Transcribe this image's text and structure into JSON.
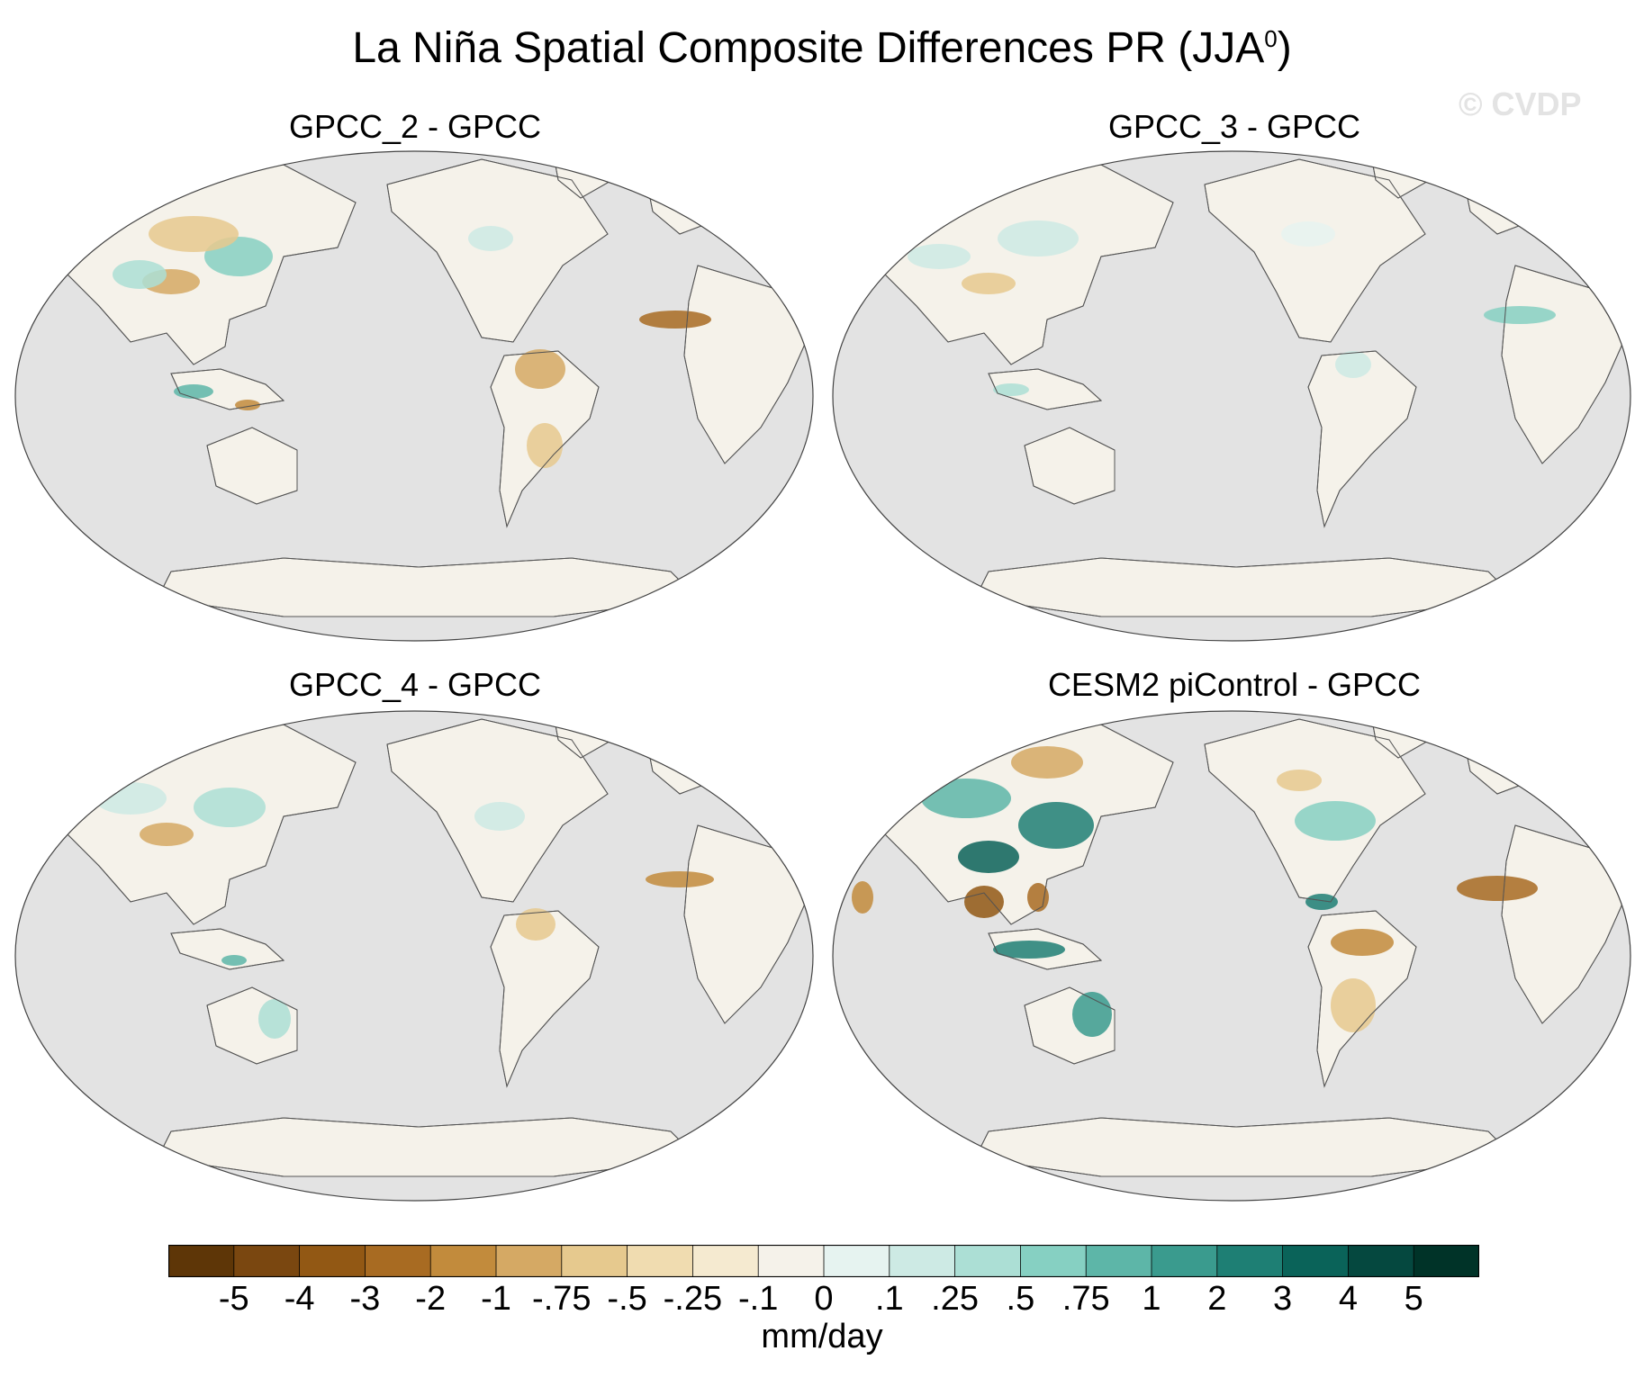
{
  "title": "La Niña Spatial Composite Differences PR (JJA",
  "title_sup": "0",
  "title_close": ")",
  "watermark": "© CVDP",
  "panels": [
    {
      "label": "GPCC_2 - GPCC"
    },
    {
      "label": "GPCC_3 - GPCC"
    },
    {
      "label": "GPCC_4 - GPCC"
    },
    {
      "label": "CESM2 piControl - GPCC"
    }
  ],
  "colorbar": {
    "labels": [
      "-5",
      "-4",
      "-3",
      "-2",
      "-1",
      "-.75",
      "-.5",
      "-.25",
      "-.1",
      "0",
      ".1",
      ".25",
      ".5",
      ".75",
      "1",
      "2",
      "3",
      "4",
      "5"
    ],
    "colors": [
      "#5e3607",
      "#7a4710",
      "#925814",
      "#a86b22",
      "#c28b3c",
      "#d5a964",
      "#e6c98e",
      "#f0dcb0",
      "#f5ead0",
      "#f5f2ea",
      "#e6f3f0",
      "#cdeae4",
      "#acdfd5",
      "#86d0c2",
      "#5db6a8",
      "#3a9b8e",
      "#1e7f74",
      "#0a6359",
      "#05483f",
      "#003328"
    ],
    "units": "mm/day"
  },
  "ocean_color": "#e3e3e3",
  "coast_color": "#555555"
}
